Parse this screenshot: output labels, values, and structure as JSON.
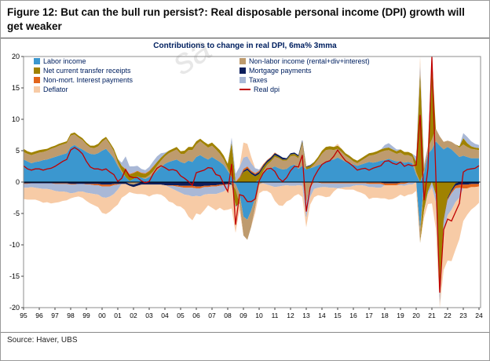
{
  "figure_title": "Figure 12: But can the bull run persist?: Real disposable personal income (DPI) growth will get weaker",
  "source": "Source: Haver, UBS",
  "watermark": "sa",
  "chart_data": {
    "type": "area",
    "stacked": true,
    "title": "Contributions to change in real DPI, 6ma% 3mma",
    "xlabel": "",
    "ylabel": "",
    "ylim": [
      -20,
      20
    ],
    "yticks": [
      -20,
      -15,
      -10,
      -5,
      0,
      5,
      10,
      15,
      20
    ],
    "x_start": 1995,
    "x_step": 0.25,
    "x_labels": [
      "95",
      "96",
      "97",
      "98",
      "99",
      "00",
      "01",
      "02",
      "03",
      "04",
      "05",
      "06",
      "07",
      "08",
      "09",
      "10",
      "11",
      "12",
      "13",
      "14",
      "15",
      "16",
      "17",
      "18",
      "19",
      "20",
      "21",
      "22",
      "23",
      "24"
    ],
    "legend_position": "top-left-two-columns",
    "grid": false,
    "total_line": {
      "name": "Real dpi",
      "color": "#C00000",
      "definition": "sum of all stacked contribution series"
    },
    "legend": [
      {
        "label": "Labor income",
        "color": "#3B97CF",
        "swatch": "box"
      },
      {
        "label": "Non-labor income (rental+div+interest)",
        "color": "#BE9B6E",
        "swatch": "box"
      },
      {
        "label": "Net current transfer receipts",
        "color": "#A08200",
        "swatch": "box"
      },
      {
        "label": "Mortgage payments",
        "color": "#0C1E5C",
        "swatch": "box"
      },
      {
        "label": "Non-mort. Interest payments",
        "color": "#E2651B",
        "swatch": "box"
      },
      {
        "label": "Taxes",
        "color": "#A9B8D6",
        "swatch": "box"
      },
      {
        "label": "Deflator",
        "color": "#F7CBA6",
        "swatch": "box"
      },
      {
        "label": "Real dpi",
        "color": "#C00000",
        "swatch": "line"
      }
    ],
    "series": [
      {
        "name": "Labor income",
        "color": "#3B97CF",
        "values": [
          3.6,
          3.3,
          3.0,
          3.2,
          3.3,
          3.5,
          3.6,
          3.8,
          4.0,
          4.2,
          4.4,
          4.6,
          5.6,
          5.9,
          5.5,
          5.2,
          4.8,
          4.5,
          4.4,
          4.6,
          5.0,
          5.3,
          4.6,
          3.8,
          2.6,
          1.6,
          0.8,
          0.2,
          0.5,
          0.9,
          0.7,
          0.5,
          0.8,
          1.2,
          1.8,
          2.4,
          2.9,
          3.2,
          3.4,
          3.6,
          3.2,
          3.0,
          3.4,
          3.2,
          4.0,
          4.3,
          3.9,
          3.6,
          4.0,
          3.6,
          3.2,
          2.7,
          1.8,
          0.8,
          -0.3,
          -1.8,
          -5.5,
          -6.0,
          -4.5,
          -2.5,
          0.4,
          1.4,
          1.9,
          2.2,
          2.5,
          2.2,
          2.0,
          2.1,
          2.6,
          2.8,
          2.1,
          2.6,
          2.0,
          2.2,
          2.4,
          2.7,
          2.9,
          3.3,
          3.5,
          3.6,
          3.9,
          3.6,
          3.2,
          3.0,
          2.8,
          2.6,
          2.8,
          3.0,
          3.2,
          3.1,
          3.2,
          3.4,
          3.5,
          3.7,
          3.5,
          3.3,
          3.3,
          3.1,
          3.2,
          3.0,
          1.2,
          -7.5,
          1.5,
          4.5,
          5.2,
          6.5,
          5.8,
          5.2,
          5.6,
          5.2,
          4.6,
          4.0,
          4.2,
          4.0,
          3.8,
          3.8,
          3.8
        ]
      },
      {
        "name": "Non-labor income (rental+div+interest)",
        "color": "#BE9B6E",
        "values": [
          1.2,
          1.2,
          1.3,
          1.3,
          1.4,
          1.3,
          1.4,
          1.5,
          1.5,
          1.6,
          1.6,
          1.6,
          1.8,
          1.7,
          1.6,
          1.5,
          1.2,
          1.0,
          1.0,
          1.1,
          1.4,
          1.6,
          1.4,
          1.1,
          0.5,
          0.2,
          0.0,
          -0.3,
          -0.4,
          -0.2,
          0.0,
          0.2,
          0.3,
          0.5,
          0.8,
          1.0,
          1.2,
          1.4,
          1.5,
          1.6,
          1.3,
          1.5,
          1.7,
          1.9,
          2.0,
          2.2,
          2.1,
          1.9,
          1.8,
          1.6,
          1.3,
          0.9,
          0.4,
          -0.2,
          -0.9,
          -1.6,
          -3.0,
          -3.2,
          -2.6,
          -1.6,
          -0.4,
          0.3,
          0.8,
          1.1,
          1.5,
          1.6,
          1.4,
          1.3,
          1.5,
          1.4,
          1.7,
          3.6,
          -3.2,
          -0.8,
          0.4,
          0.9,
          1.6,
          1.8,
          1.7,
          1.5,
          1.4,
          1.2,
          1.0,
          0.8,
          0.5,
          0.4,
          0.6,
          0.8,
          1.0,
          1.2,
          1.3,
          1.4,
          1.5,
          1.4,
          1.3,
          1.2,
          1.4,
          1.2,
          1.1,
          1.0,
          0.4,
          -2.2,
          0.4,
          1.0,
          1.6,
          2.0,
          1.5,
          1.2,
          1.0,
          1.2,
          1.4,
          1.5,
          1.8,
          1.6,
          1.5,
          1.4,
          1.3
        ]
      },
      {
        "name": "Net current transfer receipts",
        "color": "#A08200",
        "values": [
          0.5,
          0.4,
          0.4,
          0.4,
          0.4,
          0.4,
          0.3,
          0.3,
          0.3,
          0.3,
          0.3,
          0.3,
          0.3,
          0.3,
          0.3,
          0.3,
          0.3,
          0.3,
          0.4,
          0.4,
          0.4,
          0.3,
          0.3,
          0.4,
          0.6,
          0.8,
          1.2,
          1.0,
          0.9,
          0.8,
          0.7,
          0.6,
          0.6,
          0.7,
          0.6,
          0.5,
          0.4,
          0.4,
          0.4,
          0.4,
          0.4,
          0.5,
          0.5,
          0.5,
          0.5,
          0.4,
          0.4,
          0.5,
          0.5,
          0.5,
          0.6,
          0.6,
          0.7,
          5.5,
          -2.6,
          0.6,
          1.6,
          1.9,
          1.3,
          0.9,
          0.9,
          0.6,
          0.4,
          0.3,
          0.3,
          0.2,
          0.2,
          0.2,
          0.3,
          0.3,
          0.3,
          0.3,
          0.4,
          0.4,
          0.4,
          0.4,
          0.5,
          0.5,
          0.5,
          0.5,
          0.5,
          0.5,
          0.4,
          0.4,
          0.4,
          0.4,
          0.4,
          0.4,
          0.4,
          0.4,
          0.4,
          0.4,
          0.4,
          0.4,
          0.4,
          0.4,
          0.5,
          0.5,
          0.5,
          0.5,
          1.5,
          17.5,
          -4.5,
          -1.5,
          16.5,
          -2.0,
          -18.0,
          -6.0,
          -2.5,
          -1.2,
          -0.2,
          0.2,
          1.0,
          0.6,
          0.4,
          0.3,
          0.3
        ]
      },
      {
        "name": "Mortgage payments",
        "color": "#0C1E5C",
        "values": [
          -0.2,
          -0.2,
          -0.2,
          -0.2,
          -0.2,
          -0.2,
          -0.2,
          -0.2,
          -0.2,
          -0.2,
          -0.2,
          -0.2,
          -0.3,
          -0.3,
          -0.3,
          -0.3,
          -0.3,
          -0.3,
          -0.3,
          -0.3,
          -0.4,
          -0.4,
          -0.4,
          -0.3,
          -0.3,
          -0.3,
          -0.3,
          -0.3,
          -0.4,
          -0.4,
          -0.4,
          -0.4,
          -0.4,
          -0.4,
          -0.4,
          -0.4,
          -0.5,
          -0.5,
          -0.5,
          -0.5,
          -0.6,
          -0.6,
          -0.6,
          -0.6,
          -0.7,
          -0.7,
          -0.6,
          -0.6,
          -0.5,
          -0.5,
          -0.4,
          -0.4,
          -0.3,
          -0.2,
          -0.1,
          0.0,
          0.2,
          0.3,
          0.3,
          0.3,
          0.3,
          0.3,
          0.3,
          0.3,
          0.3,
          0.3,
          0.3,
          0.2,
          0.2,
          0.2,
          0.2,
          0.2,
          0.1,
          0.1,
          0.0,
          0.0,
          -0.1,
          -0.1,
          -0.1,
          -0.1,
          -0.1,
          -0.1,
          -0.1,
          -0.1,
          -0.1,
          -0.1,
          -0.1,
          -0.1,
          -0.1,
          -0.1,
          -0.1,
          -0.1,
          -0.2,
          -0.2,
          -0.2,
          -0.2,
          -0.1,
          -0.1,
          0.0,
          0.0,
          0.1,
          0.1,
          0.1,
          0.1,
          0.0,
          0.0,
          -0.1,
          -0.1,
          -0.2,
          -0.3,
          -0.4,
          -0.4,
          -0.4,
          -0.4,
          -0.3,
          -0.3,
          -0.3
        ]
      },
      {
        "name": "Non-mort. Interest payments",
        "color": "#E2651B",
        "values": [
          -0.1,
          -0.1,
          0.0,
          0.0,
          0.0,
          0.0,
          0.0,
          0.0,
          -0.1,
          -0.1,
          -0.1,
          -0.1,
          -0.1,
          -0.1,
          0.0,
          0.0,
          -0.1,
          -0.1,
          -0.2,
          -0.2,
          -0.3,
          -0.3,
          -0.3,
          -0.2,
          -0.1,
          0.0,
          0.1,
          0.1,
          0.1,
          0.1,
          0.1,
          0.1,
          0.1,
          0.1,
          0.0,
          0.0,
          0.0,
          -0.1,
          -0.1,
          -0.2,
          -0.2,
          -0.3,
          -0.3,
          -0.3,
          -0.3,
          -0.3,
          -0.2,
          -0.2,
          -0.2,
          -0.2,
          -0.2,
          -0.1,
          -0.1,
          0.0,
          0.1,
          0.2,
          0.3,
          0.3,
          0.2,
          0.2,
          0.2,
          0.2,
          0.1,
          0.1,
          0.1,
          0.0,
          0.0,
          0.0,
          0.0,
          0.0,
          0.0,
          0.0,
          0.0,
          0.0,
          -0.1,
          -0.1,
          -0.1,
          -0.1,
          -0.1,
          -0.1,
          -0.1,
          -0.1,
          -0.1,
          -0.1,
          -0.1,
          -0.1,
          -0.1,
          -0.1,
          -0.2,
          -0.2,
          -0.2,
          -0.2,
          -0.3,
          -0.3,
          -0.3,
          -0.3,
          -0.2,
          -0.2,
          -0.1,
          -0.1,
          0.1,
          0.2,
          0.2,
          0.1,
          0.1,
          0.0,
          0.0,
          -0.1,
          -0.2,
          -0.3,
          -0.4,
          -0.5,
          -0.6,
          -0.6,
          -0.5,
          -0.5,
          -0.4
        ]
      },
      {
        "name": "Taxes",
        "color": "#A9B8D6",
        "values": [
          -0.6,
          -0.6,
          -0.6,
          -0.7,
          -0.8,
          -0.9,
          -0.9,
          -1.0,
          -1.1,
          -1.2,
          -1.2,
          -1.3,
          -1.4,
          -1.3,
          -1.2,
          -1.2,
          -1.3,
          -1.4,
          -1.4,
          -1.5,
          -1.7,
          -1.8,
          -1.6,
          -1.4,
          -0.8,
          0.5,
          2.0,
          1.2,
          1.0,
          0.8,
          0.6,
          0.5,
          0.6,
          0.8,
          0.9,
          0.7,
          0.2,
          -0.2,
          -0.5,
          -0.7,
          -0.9,
          -1.1,
          -1.2,
          -1.4,
          -1.2,
          -1.3,
          -1.2,
          -1.1,
          -1.2,
          -1.2,
          -1.1,
          -1.0,
          -0.6,
          0.8,
          1.2,
          1.6,
          1.8,
          1.6,
          1.2,
          0.8,
          0.2,
          -0.2,
          -0.4,
          -0.6,
          -0.8,
          -0.7,
          -0.6,
          -0.5,
          -0.6,
          -0.6,
          -0.5,
          -0.6,
          -2.6,
          -1.6,
          -1.0,
          -0.8,
          -0.6,
          -0.6,
          -0.7,
          -0.7,
          -0.8,
          -0.7,
          -0.6,
          -0.6,
          -0.4,
          -0.3,
          -0.3,
          -0.4,
          -0.5,
          -0.5,
          -0.6,
          -0.6,
          0.5,
          0.7,
          0.5,
          0.3,
          -0.2,
          -0.3,
          -0.3,
          -0.3,
          0.8,
          1.2,
          0.6,
          -0.4,
          -0.8,
          -1.2,
          -1.6,
          -1.8,
          -2.4,
          -2.6,
          -2.2,
          -1.6,
          0.8,
          1.0,
          0.8,
          0.6,
          0.5
        ]
      },
      {
        "name": "Deflator",
        "color": "#F7CBA6",
        "values": [
          -1.8,
          -1.9,
          -2.0,
          -1.9,
          -2.0,
          -2.2,
          -2.1,
          -2.2,
          -1.9,
          -1.7,
          -1.5,
          -1.3,
          -0.8,
          -0.7,
          -0.8,
          -1.0,
          -1.3,
          -1.6,
          -1.8,
          -2.0,
          -2.5,
          -2.6,
          -2.4,
          -2.2,
          -2.4,
          -2.2,
          -1.8,
          -1.0,
          -1.0,
          -1.3,
          -1.5,
          -1.6,
          -1.9,
          -1.6,
          -1.5,
          -1.6,
          -1.9,
          -2.3,
          -2.2,
          -2.4,
          -2.2,
          -2.4,
          -3.4,
          -3.8,
          -2.8,
          -2.9,
          -2.5,
          -1.8,
          -2.2,
          -2.6,
          -2.4,
          -3.0,
          -3.4,
          -3.8,
          -4.2,
          -1.0,
          2.4,
          2.0,
          1.0,
          -0.8,
          -1.4,
          -1.2,
          -1.0,
          -1.2,
          -2.2,
          -3.0,
          -3.2,
          -2.6,
          -2.2,
          -1.6,
          -1.4,
          -1.8,
          -1.4,
          -1.2,
          -1.3,
          -1.2,
          -1.4,
          -1.6,
          -1.4,
          -0.6,
          0.3,
          -0.2,
          -0.4,
          -0.4,
          -0.6,
          -1.0,
          -1.2,
          -1.4,
          -1.9,
          -1.7,
          -1.6,
          -1.7,
          -2.1,
          -2.3,
          -2.2,
          -1.9,
          -1.5,
          -1.7,
          -1.6,
          -1.5,
          -1.4,
          1.4,
          -1.2,
          -1.6,
          -2.6,
          -4.2,
          -5.2,
          -6.0,
          -7.2,
          -8.2,
          -7.6,
          -6.6,
          -5.2,
          -4.2,
          -3.6,
          -3.1,
          -2.6
        ]
      }
    ]
  }
}
